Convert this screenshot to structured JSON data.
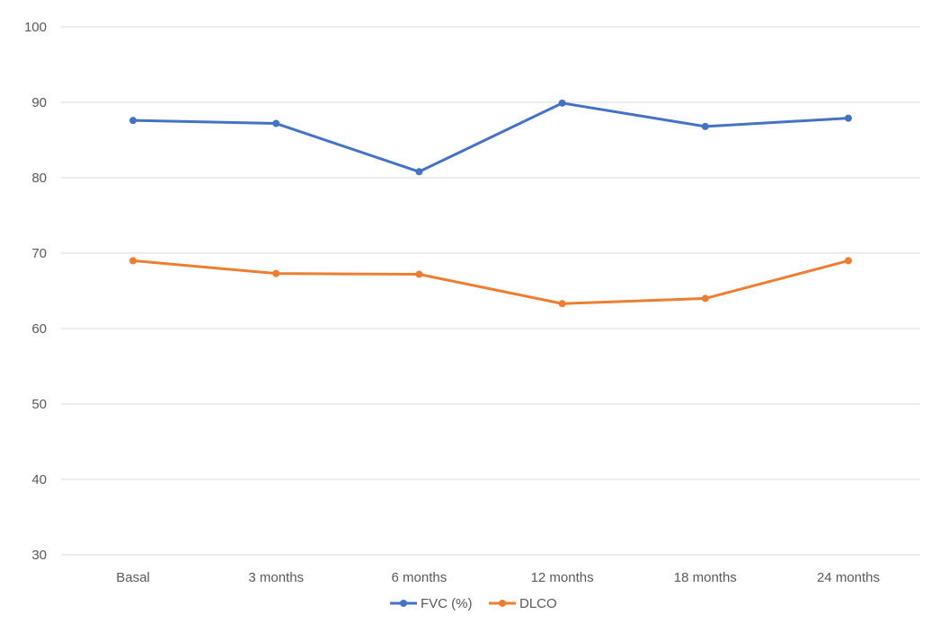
{
  "chart_data": {
    "type": "line",
    "title": "",
    "xlabel": "",
    "ylabel": "",
    "categories": [
      "Basal",
      "3 months",
      "6 months",
      "12 months",
      "18 months",
      "24 months"
    ],
    "ylim": [
      30,
      100
    ],
    "yticks": [
      30,
      40,
      50,
      60,
      70,
      80,
      90,
      100
    ],
    "grid": true,
    "legend_position": "bottom",
    "series": [
      {
        "name": "FVC (%)",
        "color": "#4472c4",
        "values": [
          87.6,
          87.2,
          80.8,
          89.9,
          86.8,
          87.9
        ]
      },
      {
        "name": "DLCO",
        "color": "#ed7d31",
        "values": [
          69.0,
          67.3,
          67.2,
          63.3,
          64.0,
          69.0
        ]
      }
    ]
  }
}
